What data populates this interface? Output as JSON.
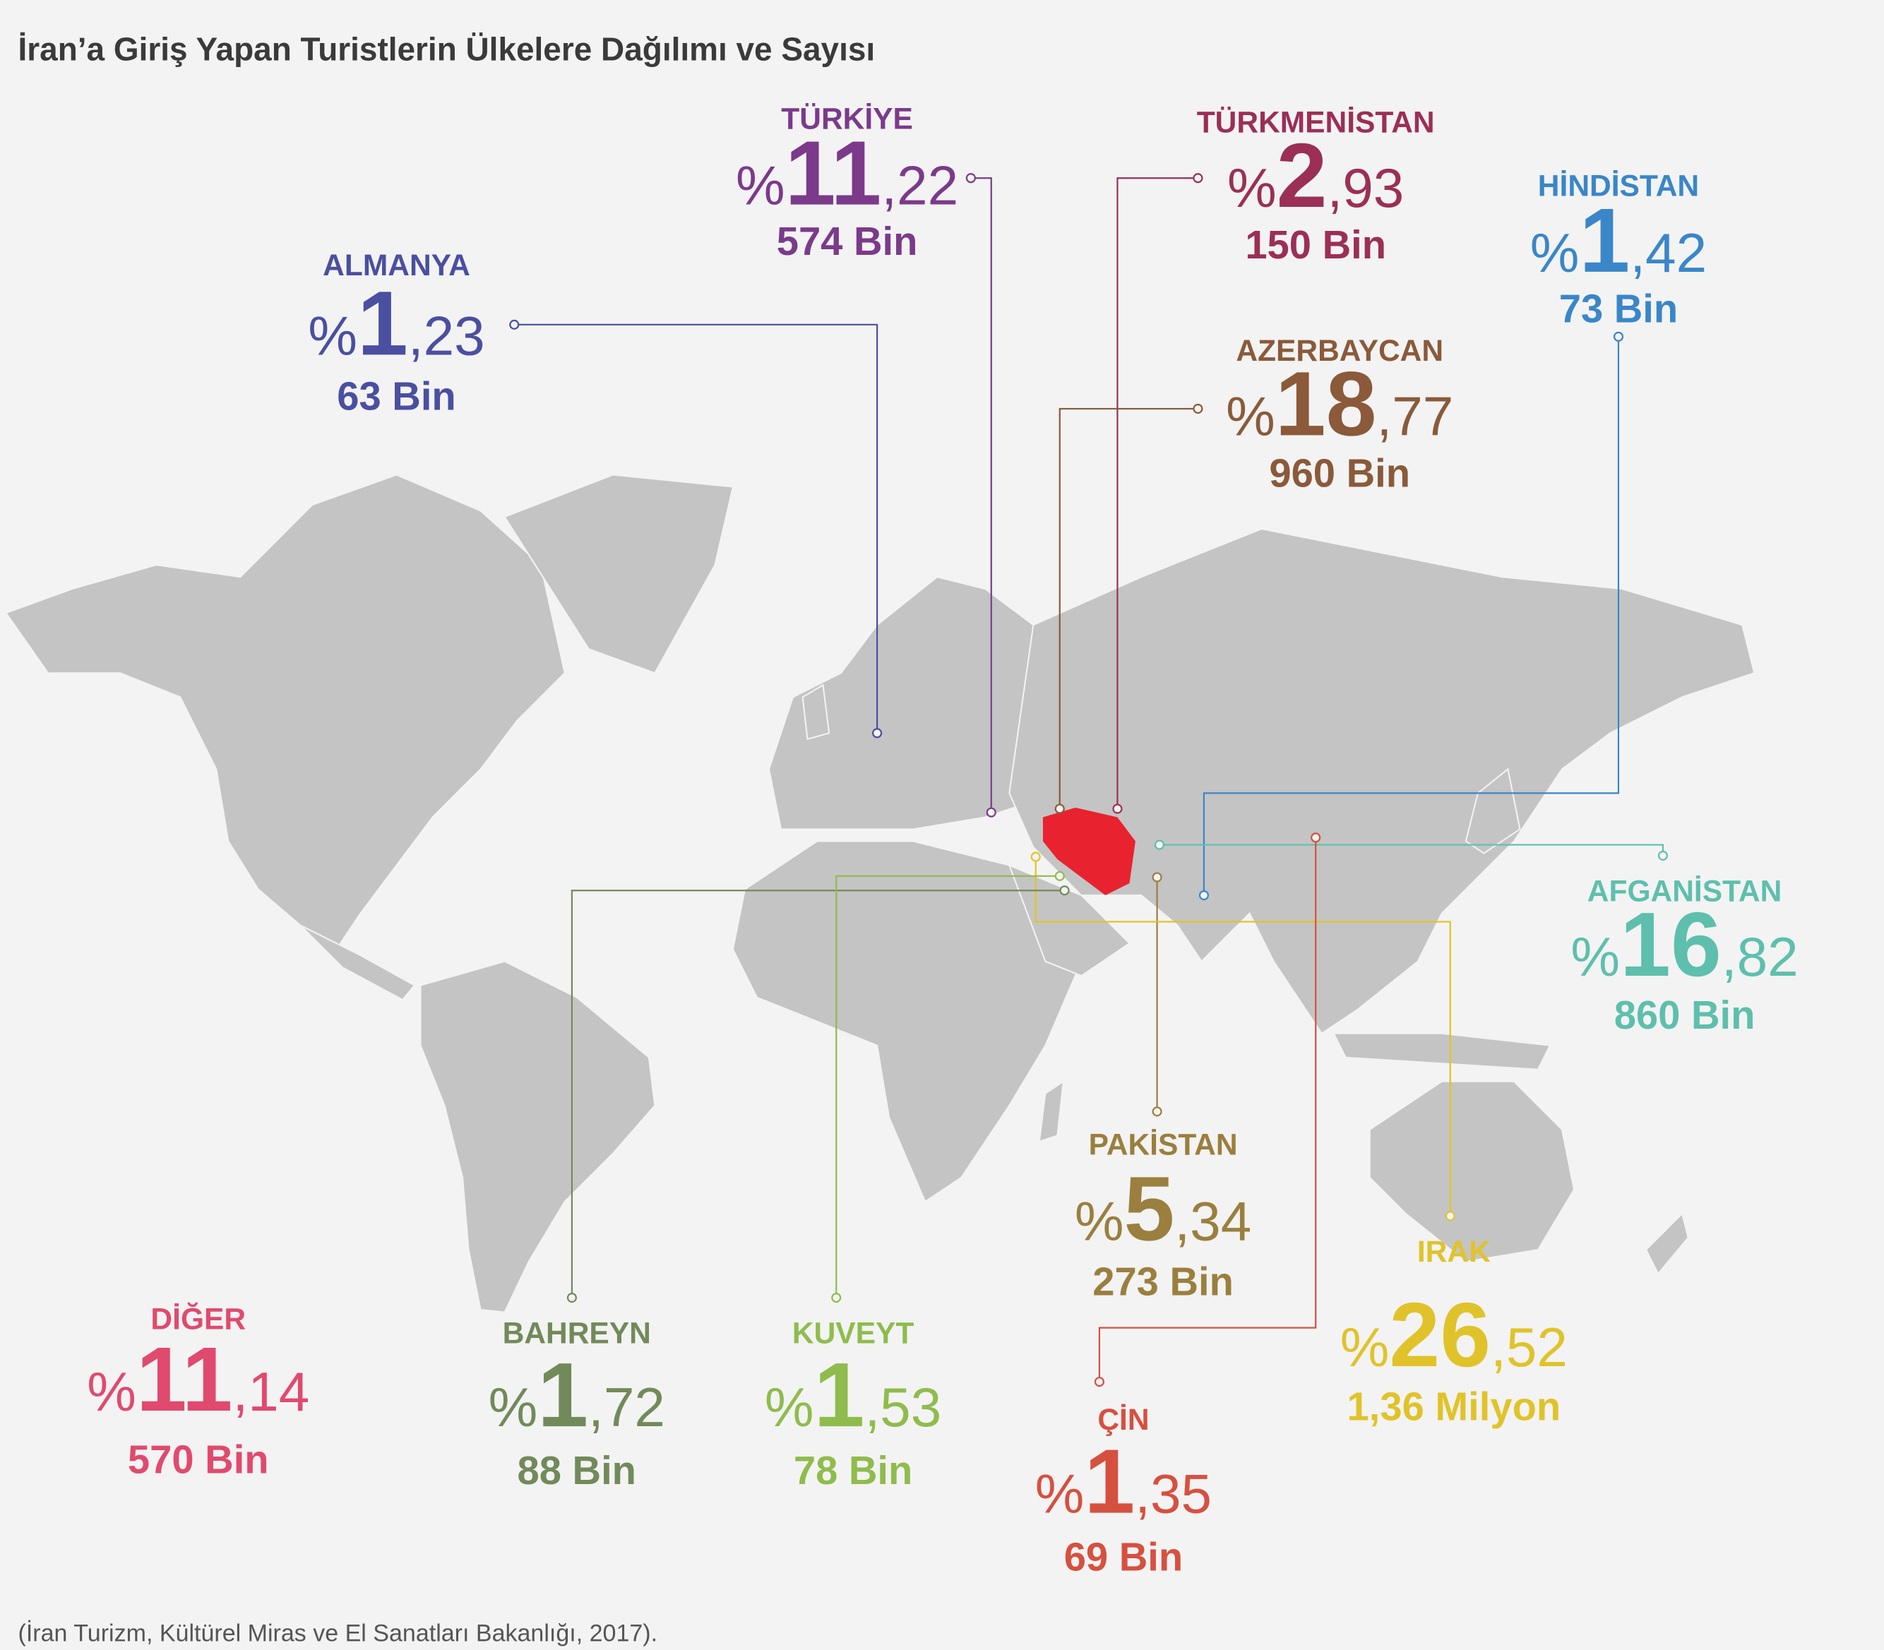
{
  "header": {
    "title": "İran’a Giriş Yapan Turistlerin Ülkelere  Dağılımı ve Sayısı"
  },
  "countries": [
    {
      "name": "TÜRKİYE",
      "percent_sign": "%",
      "whole": "11",
      "fraction": ",22",
      "count": "574 Bin"
    },
    {
      "name": "TÜRKMENİSTAN",
      "percent_sign": "%",
      "whole": "2",
      "fraction": ",93",
      "count": "150 Bin"
    },
    {
      "name": "HİNDİSTAN",
      "percent_sign": "%",
      "whole": "1",
      "fraction": ",42",
      "count": "73 Bin"
    },
    {
      "name": "ALMANYA",
      "percent_sign": "%",
      "whole": "1",
      "fraction": ",23",
      "count": "63 Bin"
    },
    {
      "name": "AZERBAYCAN",
      "percent_sign": "%",
      "whole": "18",
      "fraction": ",77",
      "count": "960 Bin"
    },
    {
      "name": "AFGANİSTAN",
      "percent_sign": "%",
      "whole": "16",
      "fraction": ",82",
      "count": "860 Bin"
    },
    {
      "name": "PAKİSTAN",
      "percent_sign": "%",
      "whole": "5",
      "fraction": ",34",
      "count": "273 Bin"
    },
    {
      "name": "IRAK",
      "percent_sign": "%",
      "whole": "26",
      "fraction": ",52",
      "count": "1,36 Milyon"
    },
    {
      "name": "DİĞER",
      "percent_sign": "%",
      "whole": "11",
      "fraction": ",14",
      "count": "570 Bin"
    },
    {
      "name": "BAHREYN",
      "percent_sign": "%",
      "whole": "1",
      "fraction": ",72",
      "count": "88 Bin"
    },
    {
      "name": "KUVEYT",
      "percent_sign": "%",
      "whole": "1",
      "fraction": ",53",
      "count": "78 Bin"
    },
    {
      "name": "ÇİN",
      "percent_sign": "%",
      "whole": "1",
      "fraction": ",35",
      "count": "69 Bin"
    }
  ],
  "source": "(İran Turizm, Kültürel Miras ve El Sanatları Bakanlığı, 2017)."
}
